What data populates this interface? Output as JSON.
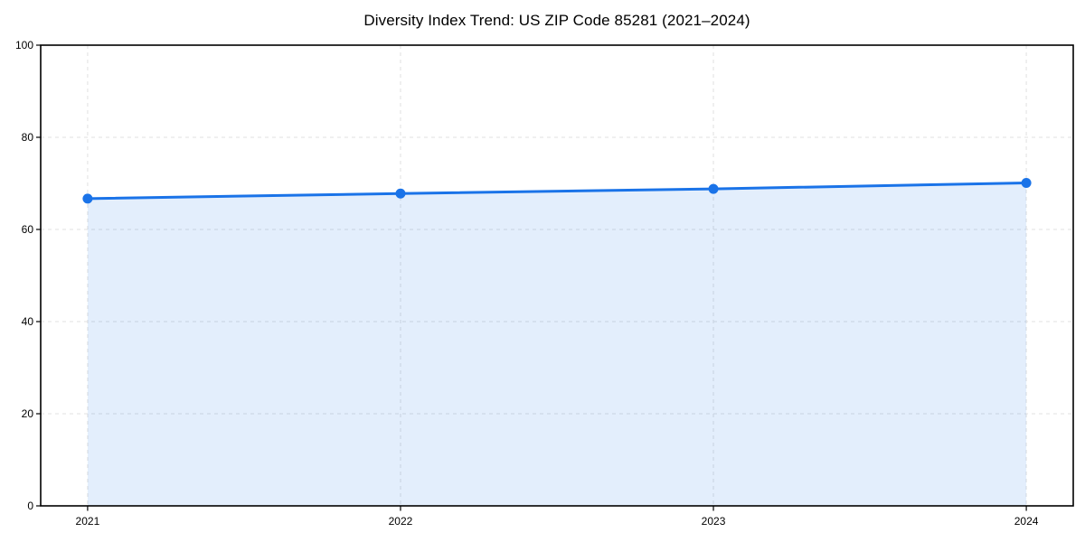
{
  "page": {
    "background": "#ffffff"
  },
  "chart_data": {
    "type": "area",
    "title": "Diversity Index Trend: US ZIP Code 85281 (2021–2024)",
    "series_name": "Diversity Index",
    "x": [
      2021,
      2022,
      2023,
      2024
    ],
    "x_tick_labels": [
      "2021",
      "2022",
      "2023",
      "2024"
    ],
    "values": [
      66.7,
      67.8,
      68.8,
      70.1
    ],
    "xlabel": "",
    "ylabel": "",
    "xlim": [
      2020.85,
      2024.15
    ],
    "ylim": [
      0,
      100
    ],
    "y_ticks": [
      0,
      20,
      40,
      60,
      80,
      100
    ],
    "y_tick_labels": [
      "0",
      "20",
      "40",
      "60",
      "80",
      "100"
    ],
    "grid": true,
    "legend": false,
    "style": {
      "line_color": "#1a73e8",
      "marker_color": "#1a73e8",
      "fill_color": "#1a73e8",
      "fill_opacity": 0.12,
      "grid_color": "#e0e0e0",
      "grid_dash": "4 4",
      "axis_color": "#000000",
      "tick_label_color": "#000000",
      "line_width": 3,
      "marker_radius": 5.5
    }
  }
}
